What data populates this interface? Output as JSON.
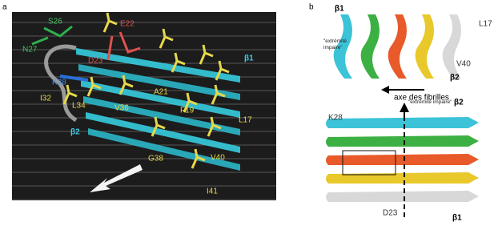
{
  "panels": [
    {
      "label": "a",
      "annotations": [
        "S26",
        "E22",
        "N27",
        "D23",
        "K28",
        "β1",
        "I32",
        "L34",
        "V36",
        "A21",
        "F19",
        "L17",
        "β2",
        "G38",
        "V40",
        "I41"
      ]
    },
    {
      "label": "b",
      "annotations": [
        "β1",
        "L17",
        "\"extrémité impaire\"",
        "V40",
        "β2",
        "axe des fibrilles",
        "\"extrémité impaire\"",
        "β2",
        "K28",
        "D23",
        "β1"
      ]
    }
  ]
}
